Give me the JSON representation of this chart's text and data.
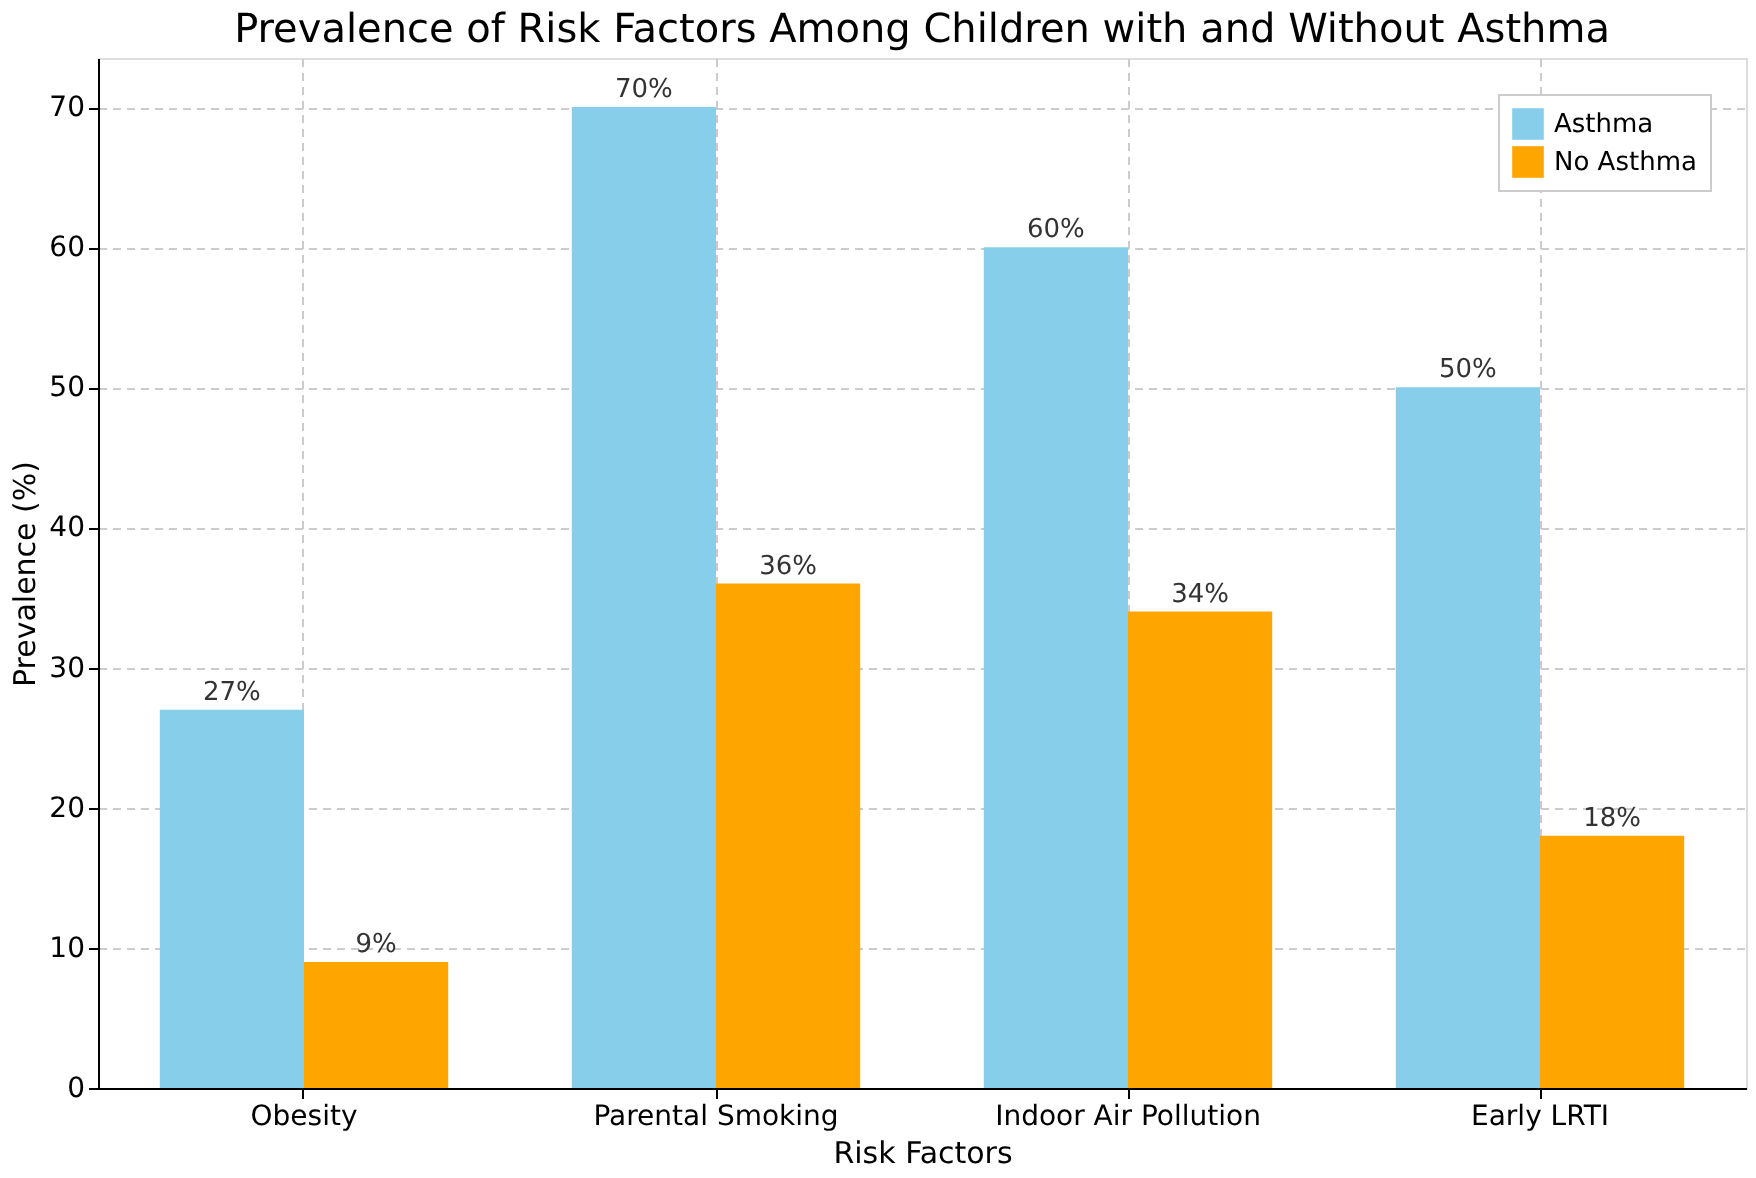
{
  "chart_data": {
    "type": "bar",
    "title": "Prevalence of Risk Factors Among Children with and Without Asthma",
    "xlabel": "Risk Factors",
    "ylabel": "Prevalence (%)",
    "categories": [
      "Obesity",
      "Parental Smoking",
      "Indoor Air Pollution",
      "Early LRTI"
    ],
    "series": [
      {
        "name": "Asthma",
        "color": "#87ceeb",
        "values": [
          27,
          70,
          60,
          50
        ],
        "value_labels": [
          "27%",
          "70%",
          "60%",
          "50%"
        ]
      },
      {
        "name": "No Asthma",
        "color": "#ffa500",
        "values": [
          9,
          36,
          34,
          18
        ],
        "value_labels": [
          "9%",
          "36%",
          "34%",
          "18%"
        ]
      }
    ],
    "ylim": [
      0,
      73.5
    ],
    "yticks": [
      0,
      10,
      20,
      30,
      40,
      50,
      60,
      70
    ],
    "grid": true,
    "legend": "top right"
  }
}
